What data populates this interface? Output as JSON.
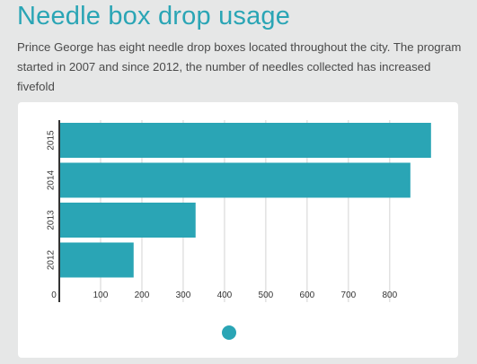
{
  "header": {
    "title": "Needle box drop usage",
    "subtitle": "Prince George has eight needle drop boxes located throughout the city. The program started in 2007 and since 2012, the number of needles collected has increased fivefold"
  },
  "colors": {
    "bar": "#2aa5b5",
    "page_bg": "#e6e7e7",
    "card_bg": "#ffffff",
    "grid": "#d3d3d3",
    "axis": "#333333"
  },
  "chart_data": {
    "type": "bar",
    "orientation": "horizontal",
    "categories": [
      "2015",
      "2014",
      "2013",
      "2012"
    ],
    "values": [
      900,
      850,
      330,
      180
    ],
    "xticks": [
      0,
      100,
      200,
      300,
      400,
      500,
      600,
      700,
      800
    ],
    "xlim": [
      0,
      900
    ],
    "title": "",
    "xlabel": "",
    "ylabel": "",
    "grid": true,
    "legend": "none"
  },
  "pager": {
    "icon": "circle-dot"
  }
}
